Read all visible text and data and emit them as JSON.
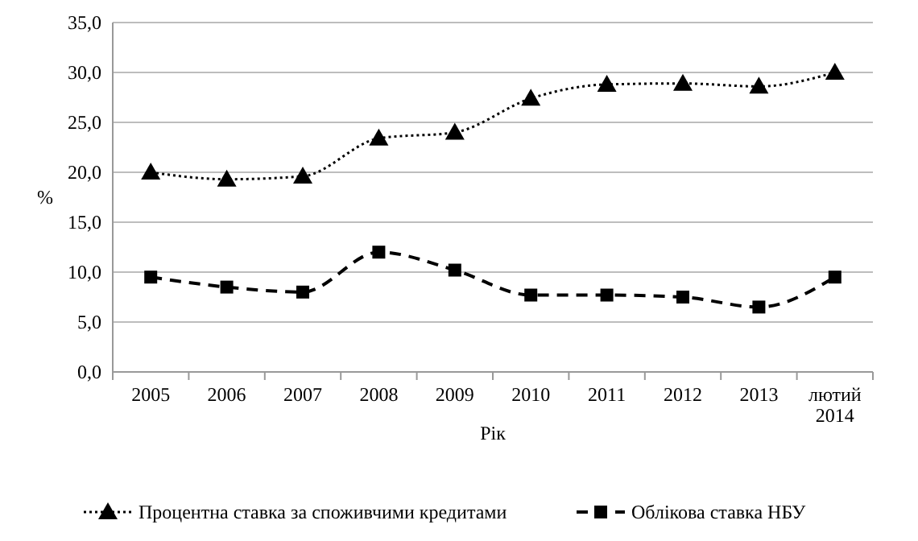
{
  "chart_data": {
    "type": "line",
    "xlabel": "Рік",
    "ylabel": "%",
    "categories": [
      "2005",
      "2006",
      "2007",
      "2008",
      "2009",
      "2010",
      "2011",
      "2012",
      "2013",
      "лютий 2014"
    ],
    "series": [
      {
        "name": "Процентна ставка за споживчими кредитами",
        "color": "#000000",
        "marker": "triangle",
        "line_style": "dotted",
        "values": [
          20.0,
          19.3,
          19.6,
          23.4,
          24.0,
          27.4,
          28.8,
          28.9,
          28.6,
          30.0
        ]
      },
      {
        "name": "Облікова ставка НБУ",
        "color": "#000000",
        "marker": "square",
        "line_style": "dashed",
        "values": [
          9.5,
          8.5,
          8.0,
          12.0,
          10.2,
          7.7,
          7.7,
          7.5,
          6.5,
          9.5
        ]
      }
    ],
    "ylim": [
      0,
      35
    ],
    "yticks": [
      {
        "value": 0,
        "label": "0,0"
      },
      {
        "value": 5,
        "label": "5,0"
      },
      {
        "value": 10,
        "label": "10,0"
      },
      {
        "value": 15,
        "label": "15,0"
      },
      {
        "value": 20,
        "label": "20,0"
      },
      {
        "value": 25,
        "label": "25,0"
      },
      {
        "value": 30,
        "label": "30,0"
      },
      {
        "value": 35,
        "label": "35,0"
      }
    ],
    "grid": "y",
    "legend": "bottom"
  }
}
